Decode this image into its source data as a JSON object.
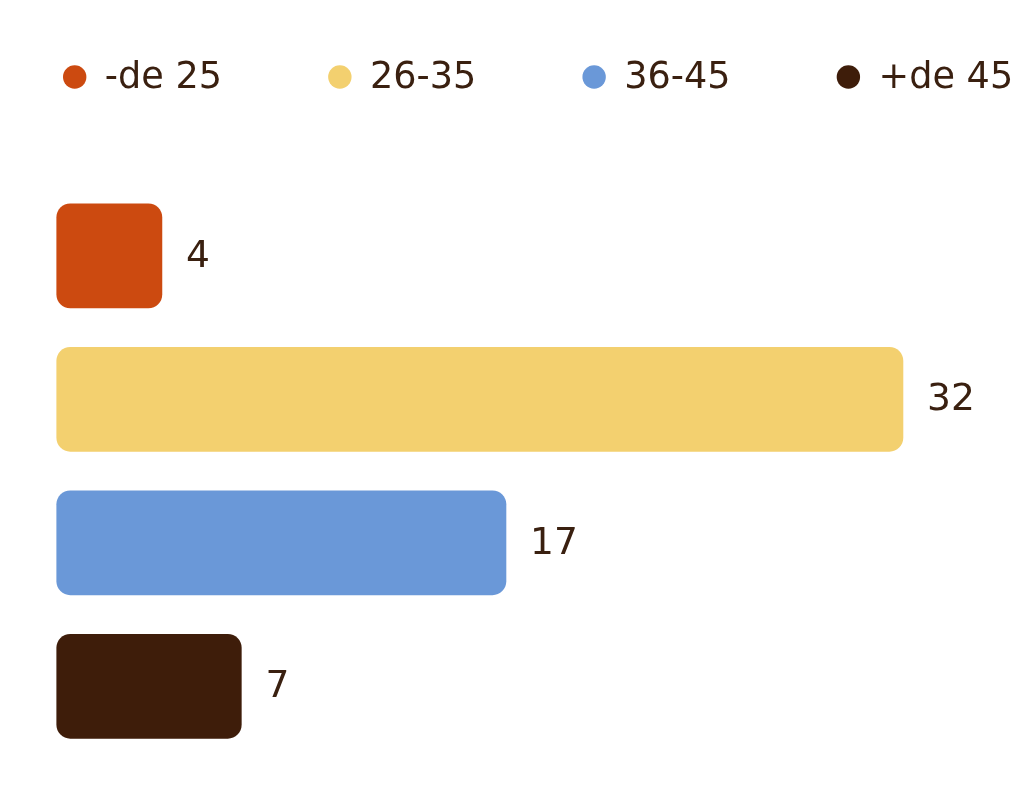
{
  "chart_data": {
    "type": "bar",
    "orientation": "horizontal",
    "stacked": true,
    "categories": [
      null,
      null,
      null,
      null
    ],
    "series": [
      {
        "name": "-de 25",
        "color": "#cc4a10",
        "values": [
          4,
          null,
          null,
          null
        ]
      },
      {
        "name": "26-35",
        "color": "#f3d06f",
        "values": [
          null,
          32,
          null,
          null
        ]
      },
      {
        "name": "36-45",
        "color": "#6a98d8",
        "values": [
          null,
          null,
          17,
          null
        ]
      },
      {
        "name": "+de 45",
        "color": "#3e1d0a",
        "values": [
          null,
          null,
          null,
          7
        ]
      }
    ],
    "data_labels": true,
    "tick_labels": false,
    "legend": "top"
  }
}
